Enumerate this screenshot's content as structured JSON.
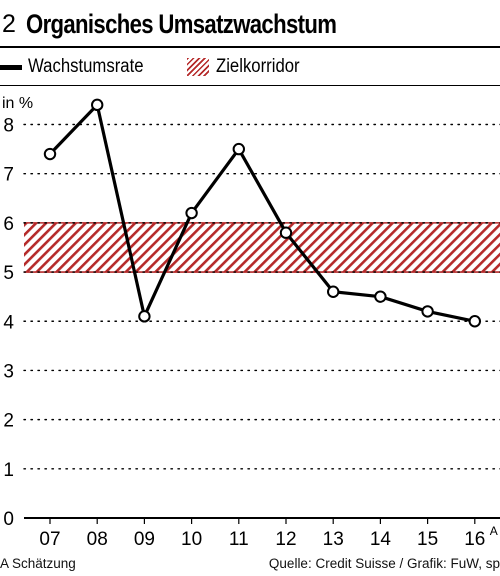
{
  "header": {
    "number": "2",
    "title": "Organisches Umsatzwachstum"
  },
  "legend": {
    "line_label": "Wachstumsrate",
    "band_label": "Zielkorridor"
  },
  "footer": {
    "note": "A Schätzung",
    "source": "Quelle: Credit Suisse / Grafik: FuW, sp"
  },
  "colors": {
    "line": "#000000",
    "band": "#b52a2a",
    "grid": "#000000"
  },
  "chart_data": {
    "type": "line",
    "ylabel": "in %",
    "ylim": [
      0,
      8.6
    ],
    "yticks": [
      0,
      1,
      2,
      3,
      4,
      5,
      6,
      7,
      8
    ],
    "categories": [
      "07",
      "08",
      "09",
      "10",
      "11",
      "12",
      "13",
      "14",
      "15",
      "16"
    ],
    "category_superscripts": [
      "",
      "",
      "",
      "",
      "",
      "",
      "",
      "",
      "",
      "A"
    ],
    "series": [
      {
        "name": "Wachstumsrate",
        "values": [
          7.4,
          8.4,
          4.1,
          6.2,
          7.5,
          5.8,
          4.6,
          4.5,
          4.2,
          4.0
        ]
      }
    ],
    "band": {
      "name": "Zielkorridor",
      "from": 5.0,
      "to": 6.0
    },
    "grid": true,
    "legend_position": "top-left"
  }
}
